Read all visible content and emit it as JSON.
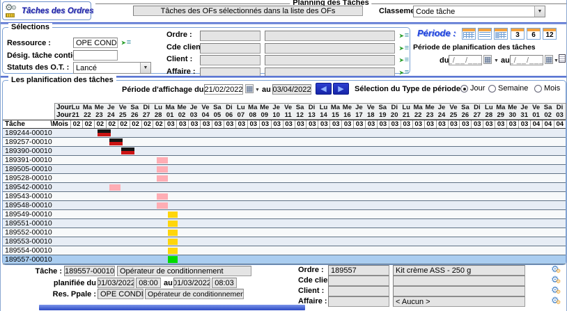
{
  "window": {
    "title": "Tâches des Ordres"
  },
  "planning": {
    "legend": "Planning des Tâches",
    "filter_value": "Tâches des OFs sélectionnés dans la liste des OFs",
    "classement_label": "Classement :",
    "classement_value": "Code tâche"
  },
  "selections": {
    "legend": "Sélections",
    "ressource_label": "Ressource :",
    "ressource_value": "OPE CONDI",
    "desig_label": "Désig. tâche contient :",
    "desig_value": "",
    "statuts_label": "Statuts des O.T. :",
    "statuts_value": "Lancé",
    "order_rows": [
      {
        "label": "Ordre :"
      },
      {
        "label": "Cde client :"
      },
      {
        "label": "Client :"
      },
      {
        "label": "Affaire :"
      }
    ]
  },
  "periode": {
    "title": "Période :",
    "buttons": [
      {
        "name": "calendar-full-grid",
        "grid": "g1",
        "label": ""
      },
      {
        "name": "calendar-weeks",
        "grid": "g2",
        "label": ""
      },
      {
        "name": "calendar-split",
        "grid": "g3",
        "label": ""
      },
      {
        "name": "period-3-months",
        "grid": "",
        "label": "3"
      },
      {
        "name": "period-6-months",
        "grid": "",
        "label": "6"
      },
      {
        "name": "period-12-months",
        "grid": "",
        "label": "12"
      }
    ],
    "subtitle": "Période de planification des tâches",
    "du_label": "du",
    "du_value": "__/__/____",
    "au_label": "au",
    "au_value": "__/__/____"
  },
  "planif": {
    "legend": "Les planification des tâches",
    "affichage_label": "Période d'affichage du",
    "from": "21/02/2022",
    "au_label": "au",
    "to": "03/04/2022",
    "type_label": "Sélection du Type de période :",
    "type_options": [
      {
        "label": "Jour",
        "selected": true
      },
      {
        "label": "Semaine",
        "selected": false
      },
      {
        "label": "Mois",
        "selected": false
      }
    ]
  },
  "grid": {
    "day_row_label": "Jour",
    "tache_label": "Tâche",
    "mois_label": "\\Mois",
    "day_names": [
      "Lu",
      "Ma",
      "Me",
      "Je",
      "Ve",
      "Sa",
      "Di",
      "Lu",
      "Ma",
      "Me",
      "Je",
      "Ve",
      "Sa",
      "Di",
      "Lu",
      "Ma",
      "Me",
      "Je",
      "Ve",
      "Sa",
      "Di",
      "Lu",
      "Ma",
      "Me",
      "Je",
      "Ve",
      "Sa",
      "Di",
      "Lu",
      "Ma",
      "Me",
      "Je",
      "Ve",
      "Sa",
      "Di",
      "Lu",
      "Ma",
      "Me",
      "Je",
      "Ve",
      "Sa",
      "Di"
    ],
    "day_numbers": [
      "21",
      "22",
      "23",
      "24",
      "25",
      "26",
      "27",
      "28",
      "01",
      "02",
      "03",
      "04",
      "05",
      "06",
      "07",
      "08",
      "09",
      "10",
      "11",
      "12",
      "13",
      "14",
      "15",
      "16",
      "17",
      "18",
      "19",
      "20",
      "21",
      "22",
      "23",
      "24",
      "25",
      "26",
      "27",
      "28",
      "29",
      "30",
      "31",
      "01",
      "02",
      "03"
    ],
    "months": [
      "02",
      "02",
      "02",
      "02",
      "02",
      "02",
      "02",
      "02",
      "03",
      "03",
      "03",
      "03",
      "03",
      "03",
      "03",
      "03",
      "03",
      "03",
      "03",
      "03",
      "03",
      "03",
      "03",
      "03",
      "03",
      "03",
      "03",
      "03",
      "03",
      "03",
      "03",
      "03",
      "03",
      "03",
      "03",
      "03",
      "03",
      "03",
      "03",
      "04",
      "04",
      "04"
    ],
    "tasks": [
      {
        "id": "189244-00010",
        "bar_day": 3,
        "bar_type": "black"
      },
      {
        "id": "189257-00010",
        "bar_day": 4,
        "bar_type": "black"
      },
      {
        "id": "189390-00010",
        "bar_day": 5,
        "bar_type": "black"
      },
      {
        "id": "189391-00010",
        "bar_day": 8,
        "bar_type": "pink"
      },
      {
        "id": "189505-00010",
        "bar_day": 8,
        "bar_type": "pink"
      },
      {
        "id": "189528-00010",
        "bar_day": 8,
        "bar_type": "pink"
      },
      {
        "id": "189542-00010",
        "bar_day": 4,
        "bar_type": "pink"
      },
      {
        "id": "189543-00010",
        "bar_day": 8,
        "bar_type": "pink"
      },
      {
        "id": "189548-00010",
        "bar_day": 8,
        "bar_type": "pink"
      },
      {
        "id": "189549-00010",
        "bar_day": 9,
        "bar_type": "yellow"
      },
      {
        "id": "189551-00010",
        "bar_day": 9,
        "bar_type": "yellow"
      },
      {
        "id": "189552-00010",
        "bar_day": 9,
        "bar_type": "yellow"
      },
      {
        "id": "189553-00010",
        "bar_day": 9,
        "bar_type": "yellow"
      },
      {
        "id": "189554-00010",
        "bar_day": 9,
        "bar_type": "yellow"
      },
      {
        "id": "189557-00010",
        "bar_day": 9,
        "bar_type": "green",
        "selected": true
      }
    ],
    "colors": {
      "black_top": "#151515",
      "black_bottom": "#cc1414",
      "pink": "#ffadb4",
      "yellow": "#ffd60a",
      "green": "#00db00",
      "selected_row": "#aacdf0"
    }
  },
  "detail": {
    "tache_label": "Tâche :",
    "tache_id": "189557-00010",
    "tache_name": "Opérateur de conditionnement",
    "planifiee_label": "planifiée du",
    "from_date": "01/03/2022",
    "from_time": "08:00",
    "au_label": "au",
    "to_date": "01/03/2022",
    "to_time": "08:03",
    "res_label": "Res. Ppale :",
    "res_code": "OPE CONDI",
    "res_name": "Opérateur de conditionnement",
    "rows": [
      {
        "label": "Ordre :",
        "v1": "189557",
        "v2": "Kit crème ASS - 250 g"
      },
      {
        "label": "Cde client :",
        "v1": "",
        "v2": ""
      },
      {
        "label": "Client :",
        "v1": "",
        "v2": ""
      },
      {
        "label": "Affaire :",
        "v1": "",
        "v2": "< Aucun >"
      }
    ]
  },
  "icons": {
    "gear": "⚙",
    "list": "≡",
    "list_arrow": "➤",
    "calendar": "▦",
    "dropdown": "▼",
    "nav_prev": "◀",
    "nav_next": "▶"
  }
}
